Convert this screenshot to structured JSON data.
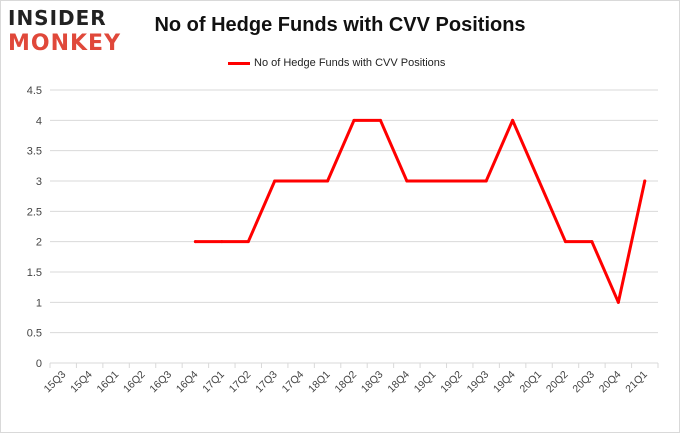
{
  "logo": {
    "line1": "INSIDER",
    "line2": "MONKEY"
  },
  "colors": {
    "series": "#ff0000",
    "grid": "#d9d9d9",
    "axis_text": "#444444",
    "logo_accent": "#e0483a"
  },
  "chart_data": {
    "type": "line",
    "title": "No of Hedge Funds with CVV Positions",
    "legend_position": "top",
    "grid": true,
    "xlabel": "",
    "ylabel": "",
    "ylim": [
      0,
      4.5
    ],
    "yticks": [
      "0",
      "0.5",
      "1",
      "1.5",
      "2",
      "2.5",
      "3",
      "3.5",
      "4",
      "4.5"
    ],
    "categories": [
      "15Q3",
      "15Q4",
      "16Q1",
      "16Q2",
      "16Q3",
      "16Q4",
      "17Q1",
      "17Q2",
      "17Q3",
      "17Q4",
      "18Q1",
      "18Q2",
      "18Q3",
      "18Q4",
      "19Q1",
      "19Q2",
      "19Q3",
      "19Q4",
      "20Q1",
      "20Q2",
      "20Q3",
      "20Q4",
      "21Q1"
    ],
    "series": [
      {
        "name": "No of Hedge Funds with CVV Positions",
        "values": [
          null,
          null,
          null,
          null,
          null,
          2,
          2,
          2,
          3,
          3,
          3,
          4,
          4,
          3,
          3,
          3,
          3,
          4,
          3,
          2,
          2,
          1,
          3
        ]
      }
    ]
  }
}
